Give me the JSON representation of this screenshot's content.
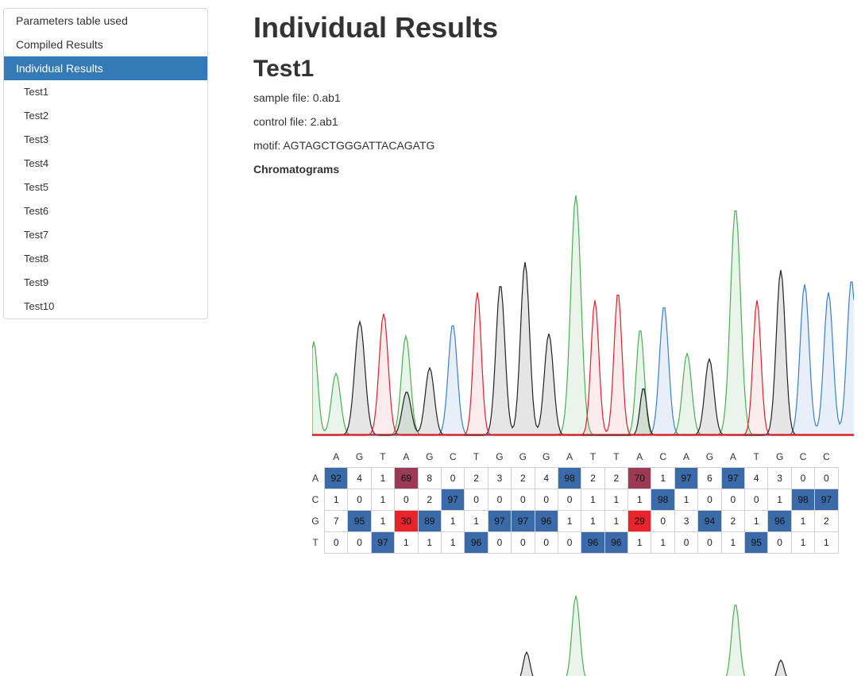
{
  "toc": {
    "items": [
      {
        "label": "Parameters table used"
      },
      {
        "label": "Compiled Results"
      },
      {
        "label": "Individual Results"
      }
    ],
    "subitems": [
      {
        "label": "Test1"
      },
      {
        "label": "Test2"
      },
      {
        "label": "Test3"
      },
      {
        "label": "Test4"
      },
      {
        "label": "Test5"
      },
      {
        "label": "Test6"
      },
      {
        "label": "Test7"
      },
      {
        "label": "Test8"
      },
      {
        "label": "Test9"
      },
      {
        "label": "Test10"
      }
    ]
  },
  "main": {
    "title": "Individual Results",
    "test_title": "Test1",
    "sample_file": "sample file: 0.ab1",
    "control_file": "control file: 2.ab1",
    "motif": "motif: AGTAGCTGGGATTACAGATG",
    "chromatograms_label": "Chromatograms"
  },
  "colors": {
    "accent": "#337ab7",
    "A": "#4caf50",
    "C": "#3a7fd0",
    "G": "#222222",
    "T": "#e0202a",
    "call_blue": "#3b6aa8",
    "mix_maroon": "#9a3a55",
    "mix_red": "#e8232b",
    "mix_purple": "#5a6aa8",
    "mix_pink": "#f6dcde"
  },
  "table": {
    "bases": [
      "A",
      "G",
      "T",
      "A",
      "G",
      "C",
      "T",
      "G",
      "G",
      "G",
      "A",
      "T",
      "T",
      "A",
      "C",
      "A",
      "G",
      "A",
      "T",
      "G",
      "C",
      "C"
    ],
    "rows": [
      {
        "label": "A",
        "values": [
          92,
          4,
          1,
          69,
          8,
          0,
          2,
          3,
          2,
          4,
          98,
          2,
          2,
          70,
          1,
          97,
          6,
          97,
          4,
          3,
          0,
          0
        ]
      },
      {
        "label": "C",
        "values": [
          1,
          0,
          1,
          0,
          2,
          97,
          0,
          0,
          0,
          0,
          0,
          1,
          1,
          1,
          98,
          1,
          0,
          0,
          0,
          1,
          98,
          97
        ]
      },
      {
        "label": "G",
        "values": [
          7,
          95,
          1,
          30,
          89,
          1,
          1,
          97,
          97,
          96,
          1,
          1,
          1,
          29,
          0,
          3,
          94,
          2,
          1,
          96,
          1,
          2
        ]
      },
      {
        "label": "T",
        "values": [
          0,
          0,
          97,
          1,
          1,
          1,
          96,
          0,
          0,
          0,
          0,
          96,
          96,
          1,
          1,
          0,
          0,
          1,
          95,
          0,
          1,
          1
        ]
      }
    ]
  }
}
